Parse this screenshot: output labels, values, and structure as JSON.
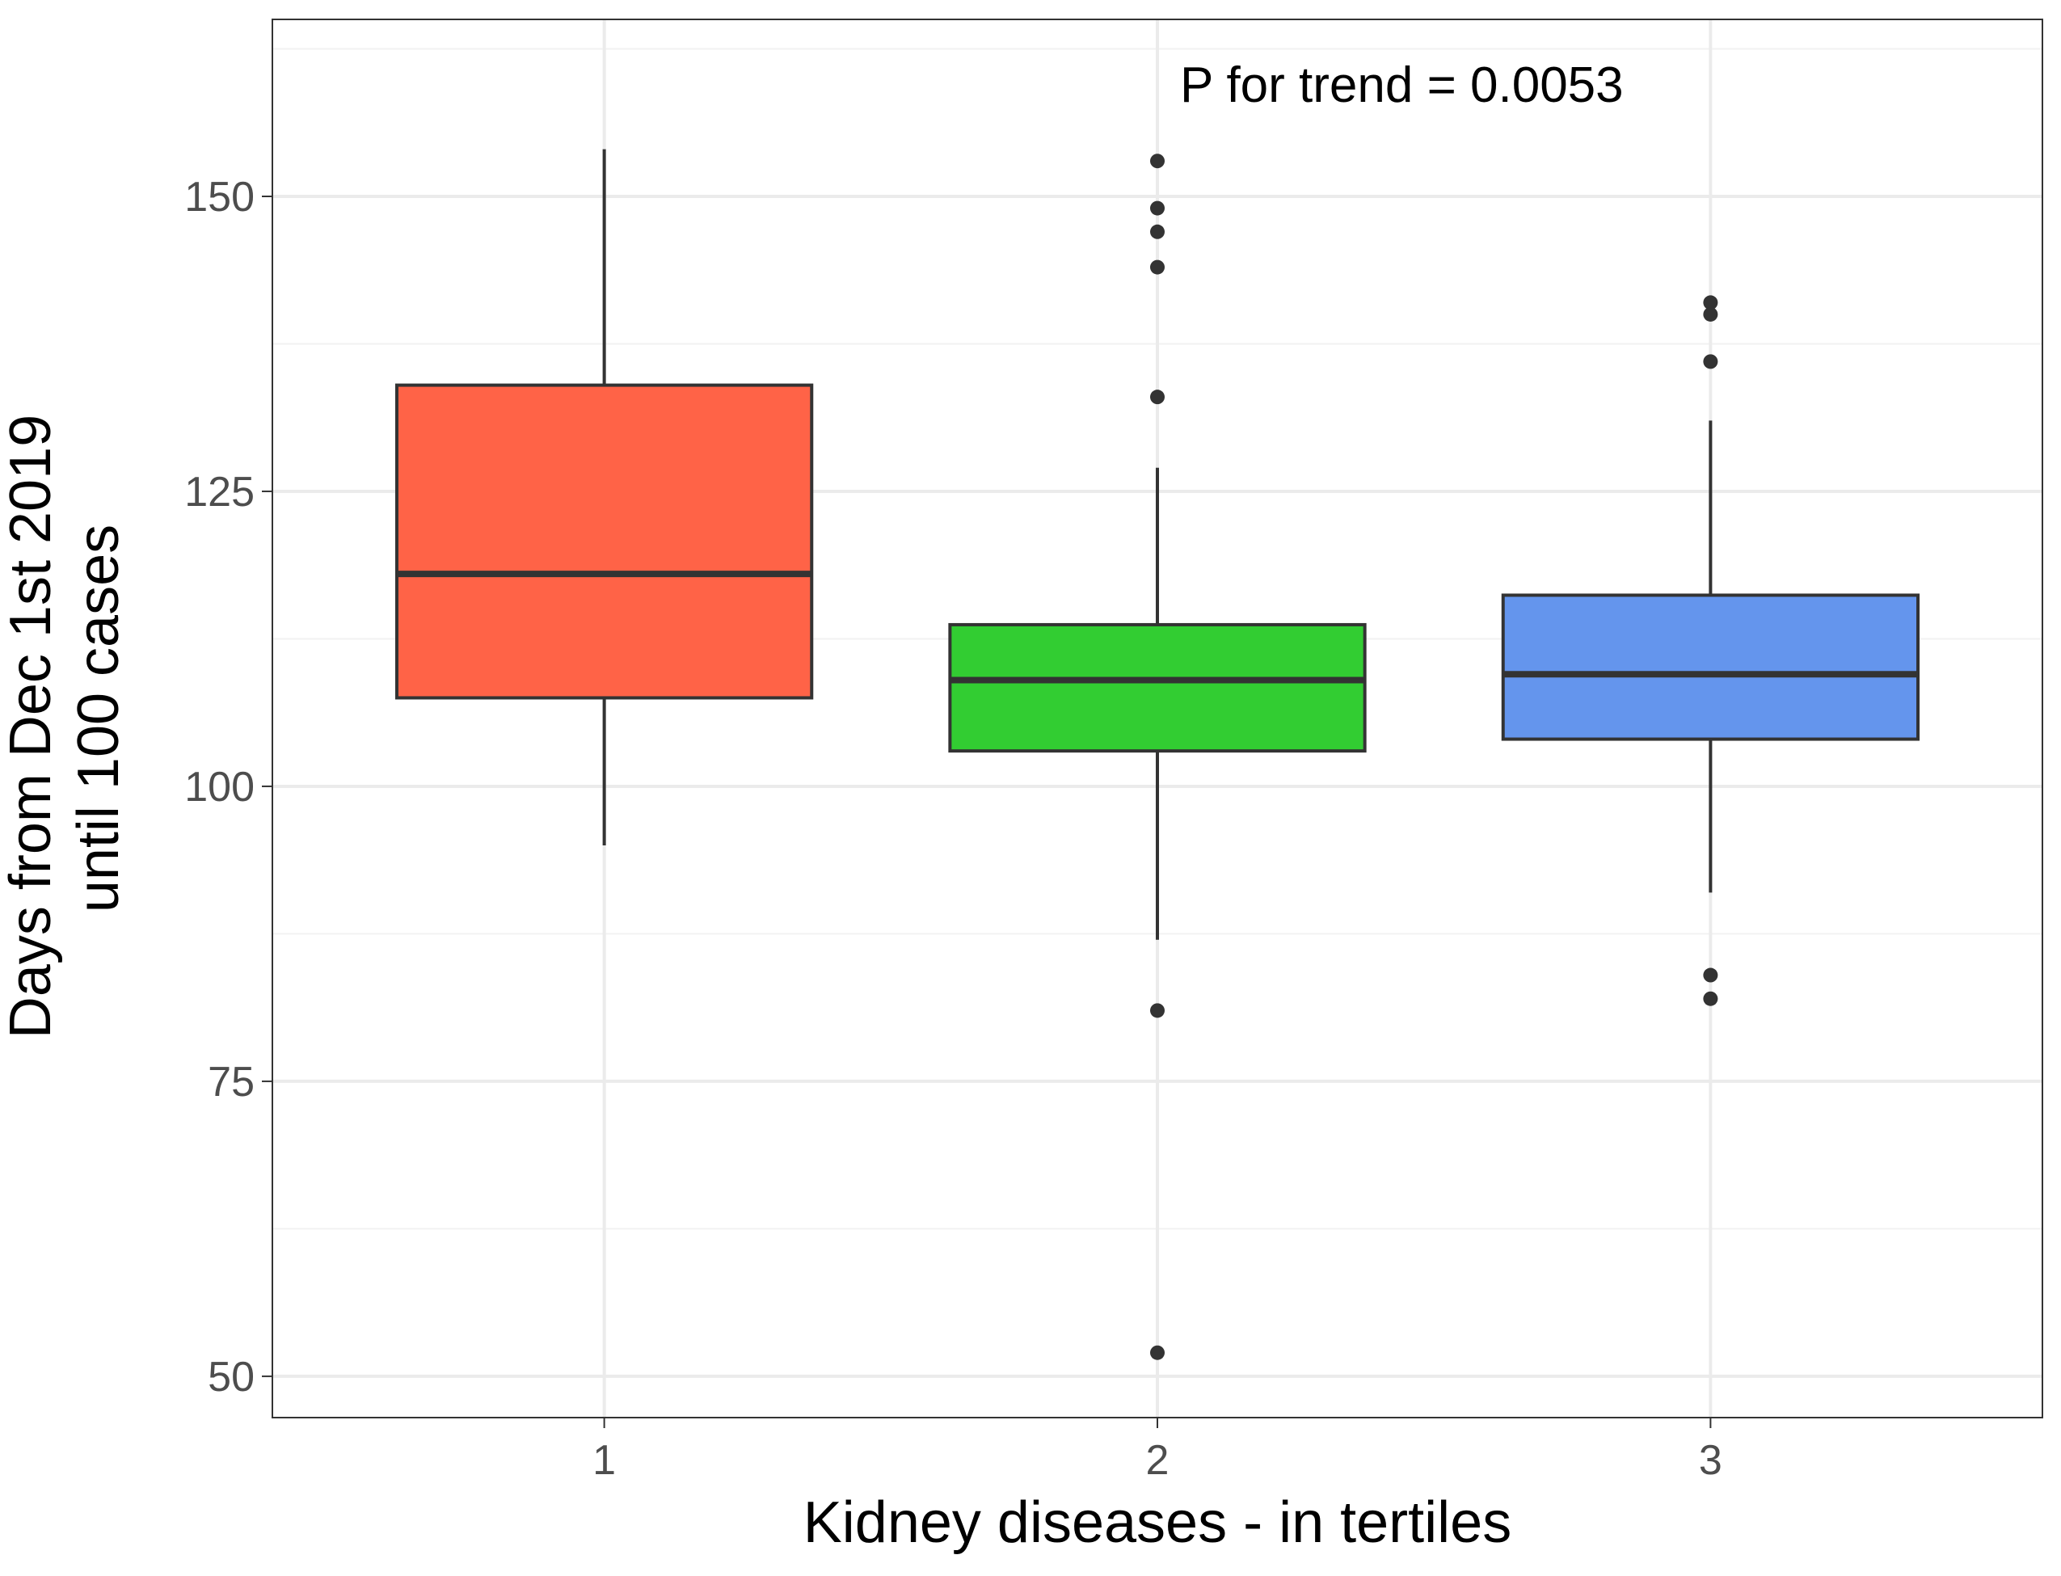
{
  "chart_data": {
    "type": "box",
    "xlabel": "Kidney diseases - in tertiles",
    "ylabel_lines": [
      "Days from Dec 1st 2019",
      "until 100 cases"
    ],
    "annotation": "P for trend = 0.0053",
    "categories": [
      "1",
      "2",
      "3"
    ],
    "ylim": [
      46.5,
      165
    ],
    "y_ticks": [
      50,
      75,
      100,
      125,
      150
    ],
    "y_minor_ticks": [
      62.5,
      87.5,
      112.5,
      137.5,
      162.5
    ],
    "grid": true,
    "boxes": [
      {
        "category": "1",
        "min": 95,
        "q1": 107.5,
        "median": 118,
        "q3": 134,
        "max": 154,
        "outliers": [],
        "color": "#FF6347"
      },
      {
        "category": "2",
        "min": 87,
        "q1": 103,
        "median": 109,
        "q3": 113.7,
        "max": 127,
        "outliers": [
          153,
          149,
          147,
          144,
          133,
          81,
          52
        ],
        "color": "#32CD32"
      },
      {
        "category": "3",
        "min": 91,
        "q1": 104,
        "median": 109.5,
        "q3": 116.2,
        "max": 131,
        "outliers": [
          141,
          140,
          136,
          84,
          82
        ],
        "color": "#6495ED"
      }
    ]
  }
}
